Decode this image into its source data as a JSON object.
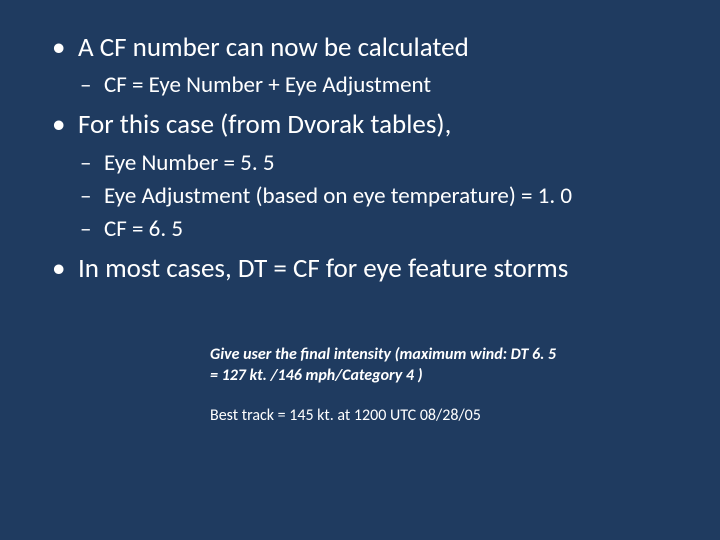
{
  "background_color": "#1f3b60",
  "text_color": "#ffffff",
  "font_family": "Calibri",
  "level1_fontsize_pt": 20,
  "level2_fontsize_pt": 17,
  "footer_fontsize_pt": 12,
  "bullets": {
    "b1": {
      "text": "A CF number can now be calculated"
    },
    "b1_sub": {
      "s1": "CF = Eye Number + Eye Adjustment"
    },
    "b2": {
      "text": "For this case (from Dvorak tables),"
    },
    "b2_sub": {
      "s1": "Eye Number = 5. 5",
      "s2": "Eye Adjustment (based on eye temperature) =  1. 0",
      "s3": "CF = 6. 5"
    },
    "b3": {
      "text": "In most cases, DT = CF for eye feature storms"
    }
  },
  "footer": {
    "line1": "Give user the final intensity (maximum wind: DT 6. 5",
    "line2": " = 127 kt. /146 mph/Category 4 )",
    "line3": "Best track = 145 kt. at 1200 UTC 08/28/05"
  }
}
